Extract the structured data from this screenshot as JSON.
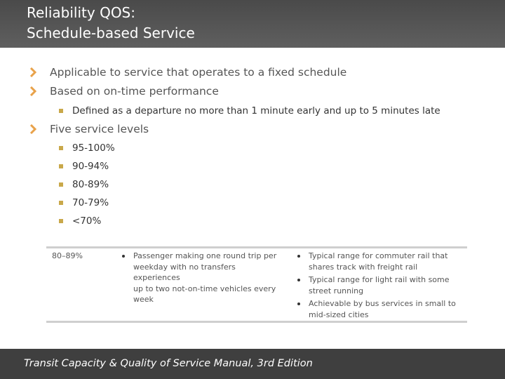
{
  "title": {
    "line1": "Reliability QOS:",
    "line2": "Schedule-based Service"
  },
  "bullets": [
    {
      "text": "Applicable to service that operates to a fixed schedule"
    },
    {
      "text": "Based on on-time performance"
    },
    {
      "text": "Five service levels"
    }
  ],
  "sub_bullets_ontime": [
    "Defined as a departure no more than 1 minute early and up to 5 minutes late"
  ],
  "service_levels": [
    "95-100%",
    "90-94%",
    "80-89%",
    "70-79%",
    "<70%"
  ],
  "table": {
    "level": "80–89%",
    "passenger_lines": [
      "Passenger making one round trip per",
      "weekday with no transfers experiences",
      "up to two not-on-time vehicles every",
      "week"
    ],
    "typical": [
      [
        "Typical range for commuter rail that",
        "shares track with freight rail"
      ],
      [
        "Typical range for light rail with some",
        "street running"
      ],
      [
        "Achievable by bus services in small to",
        "mid-sized cities"
      ]
    ]
  },
  "footer": "Transit Capacity & Quality of Service Manual, 3rd Edition",
  "colors": {
    "header_bg": "#555555",
    "chevron": "#e8a24a",
    "sub_bullet": "#c9a84a",
    "footer_bg": "#3f3f3f"
  },
  "icons": {
    "bullet": "chevron-right-icon",
    "sub_bullet": "square-bullet-icon"
  }
}
